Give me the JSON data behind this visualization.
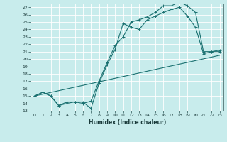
{
  "xlabel": "Humidex (Indice chaleur)",
  "xlim": [
    -0.5,
    23.5
  ],
  "ylim": [
    13,
    27.5
  ],
  "yticks": [
    13,
    14,
    15,
    16,
    17,
    18,
    19,
    20,
    21,
    22,
    23,
    24,
    25,
    26,
    27
  ],
  "xticks": [
    0,
    1,
    2,
    3,
    4,
    5,
    6,
    7,
    8,
    9,
    10,
    11,
    12,
    13,
    14,
    15,
    16,
    17,
    18,
    19,
    20,
    21,
    22,
    23
  ],
  "bg_color": "#c8ecec",
  "grid_color": "#ffffff",
  "line_color": "#1a7070",
  "line1_x": [
    0,
    1,
    2,
    3,
    4,
    5,
    6,
    7,
    8,
    9,
    10,
    11,
    12,
    13,
    14,
    15,
    16,
    17,
    18,
    19,
    20,
    21,
    22,
    23
  ],
  "line1_y": [
    15.0,
    15.5,
    15.0,
    13.7,
    14.2,
    14.2,
    14.2,
    13.3,
    16.7,
    19.2,
    21.3,
    24.8,
    24.3,
    24.0,
    25.3,
    25.8,
    26.3,
    26.7,
    27.0,
    25.8,
    24.3,
    20.7,
    21.0,
    21.0
  ],
  "line2_x": [
    0,
    1,
    2,
    3,
    4,
    5,
    6,
    7,
    8,
    9,
    10,
    11,
    12,
    13,
    14,
    15,
    16,
    17,
    18,
    19,
    20,
    21,
    22,
    23
  ],
  "line2_y": [
    15.0,
    15.5,
    15.0,
    13.7,
    14.0,
    14.2,
    14.0,
    14.3,
    17.0,
    19.5,
    21.8,
    23.0,
    25.0,
    25.3,
    25.7,
    26.3,
    27.2,
    27.2,
    27.7,
    27.2,
    26.3,
    21.0,
    21.0,
    21.2
  ],
  "line3_x": [
    0,
    23
  ],
  "line3_y": [
    15.0,
    20.5
  ]
}
